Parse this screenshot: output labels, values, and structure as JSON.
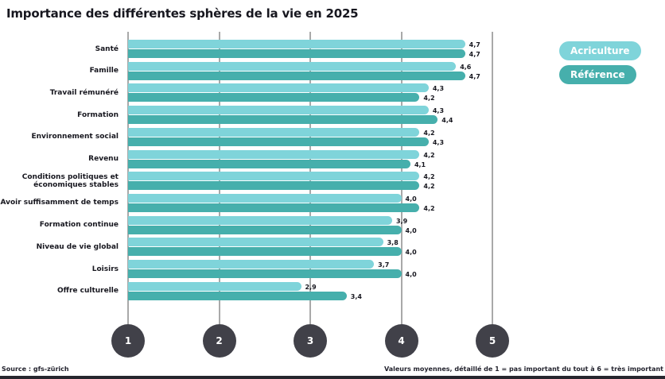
{
  "title": "Importance des différentes sphères de la vie en 2025",
  "legend": [
    {
      "label": "Acriculture",
      "color": "#7fd4da"
    },
    {
      "label": "Référence",
      "color": "#46afac"
    }
  ],
  "footer": {
    "source": "Source : gfs-zürich",
    "note": "Valeurs moyennes, détaillé de 1 = pas important du tout à 6 = très important"
  },
  "chart_data": {
    "type": "bar",
    "orientation": "horizontal-grouped",
    "title": "Importance des différentes sphères de la vie en 2025",
    "categories": [
      "Santé",
      "Famille",
      "Travail rémunéré",
      "Formation",
      "Environnement social",
      "Revenu",
      "Conditions politiques et économiques stables",
      "Avoir suffisamment de temps",
      "Formation continue",
      "Niveau de vie global",
      "Loisirs",
      "Offre culturelle"
    ],
    "series": [
      {
        "name": "Acriculture",
        "color": "#7fd4da",
        "values": [
          4.7,
          4.6,
          4.3,
          4.3,
          4.2,
          4.2,
          4.2,
          4.0,
          3.9,
          3.8,
          3.7,
          2.9
        ]
      },
      {
        "name": "Référence",
        "color": "#46afac",
        "values": [
          4.7,
          4.7,
          4.2,
          4.4,
          4.3,
          4.1,
          4.2,
          4.2,
          4.0,
          4.0,
          4.0,
          3.4
        ]
      }
    ],
    "x_ticks": [
      1,
      2,
      3,
      4,
      5
    ],
    "xlim": [
      1,
      5
    ],
    "scale_note": "échelle de 1 (pas important du tout) à 6 (très important)",
    "value_decimal_separator": ",",
    "grid": true,
    "legend_position": "right",
    "tick_circle_color": "#414149",
    "grid_color": "#a9a9a9"
  }
}
